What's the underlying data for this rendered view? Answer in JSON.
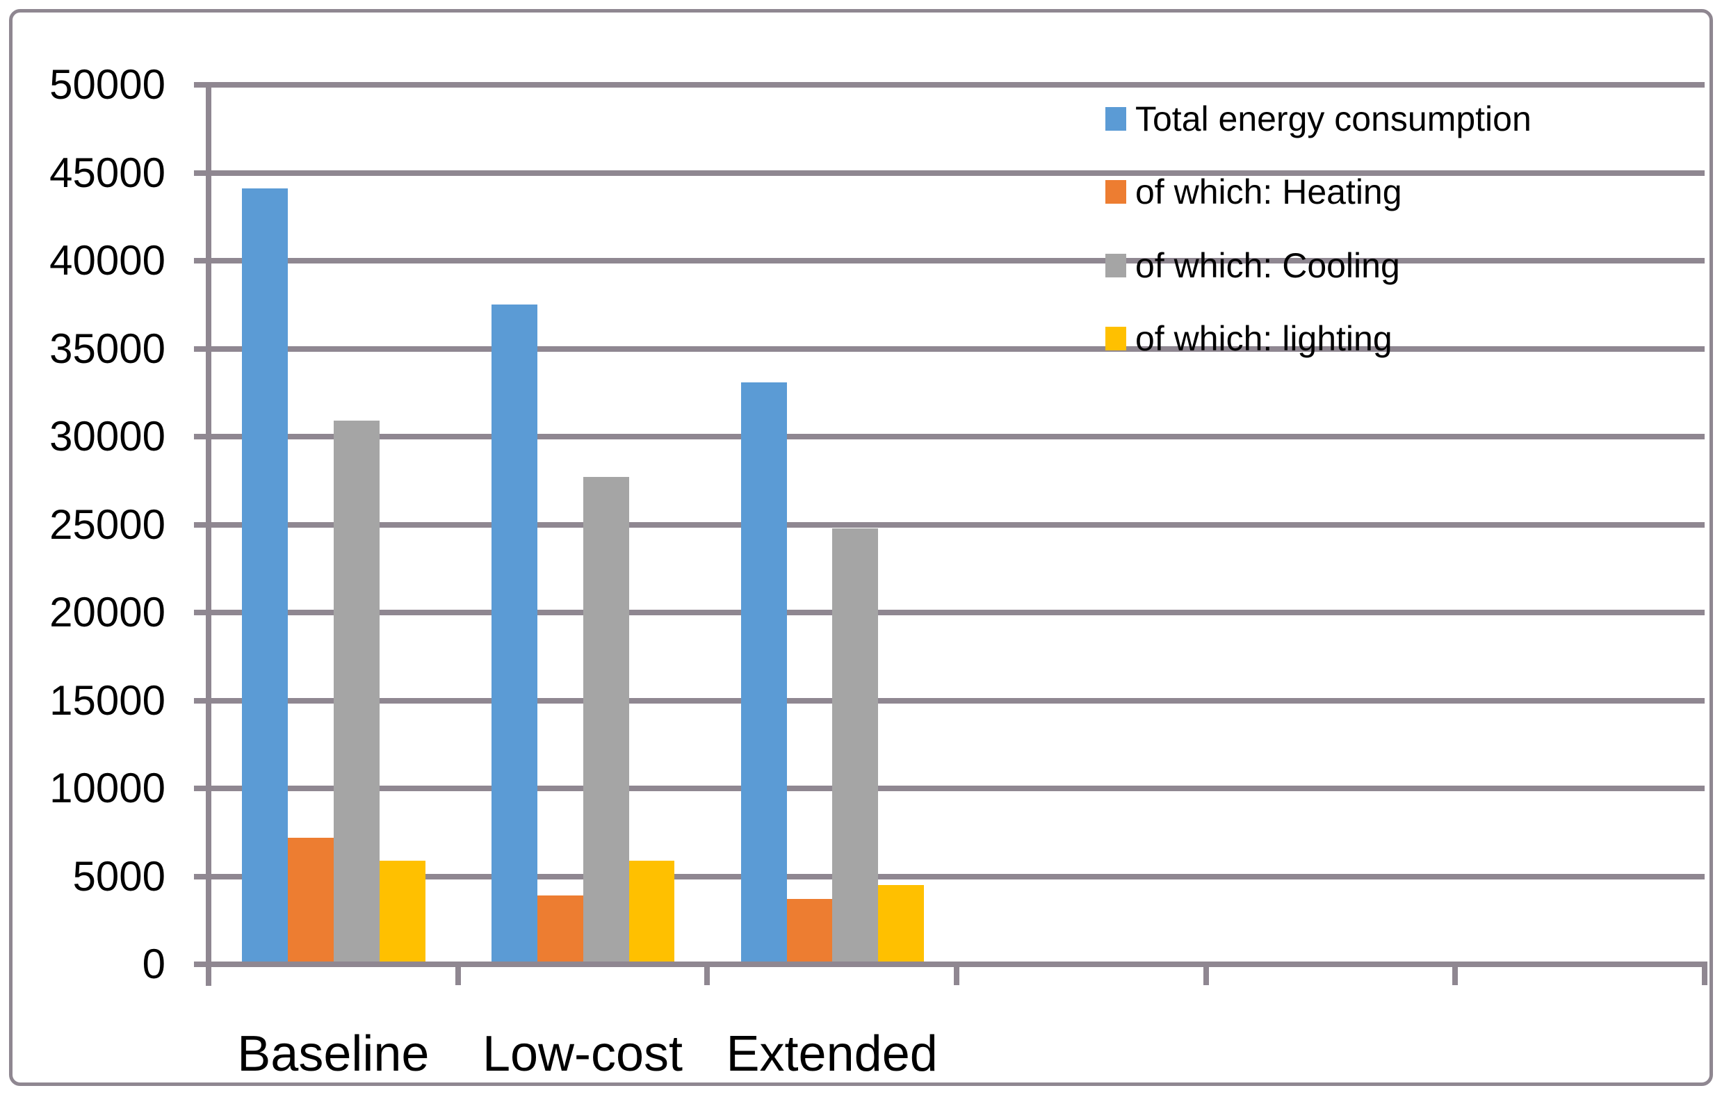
{
  "chart_data": {
    "type": "bar",
    "categories": [
      "Baseline",
      "Low-cost",
      "Extended"
    ],
    "series": [
      {
        "key": "total-energy-consumption",
        "name": "Total energy consumption",
        "color": "#5B9BD5",
        "values": [
          44100,
          37500,
          33100
        ]
      },
      {
        "key": "heating",
        "name": "of which: Heating",
        "color": "#ED7D31",
        "values": [
          7200,
          3900,
          3700
        ]
      },
      {
        "key": "cooling",
        "name": "of which: Cooling",
        "color": "#A5A5A5",
        "values": [
          30900,
          27700,
          24800
        ]
      },
      {
        "key": "lighting",
        "name": "of which: lighting",
        "color": "#FFC000",
        "values": [
          5900,
          5900,
          4500
        ]
      }
    ],
    "title": "",
    "xlabel": "",
    "ylabel": "",
    "ylim": [
      0,
      50000
    ],
    "ytick_step": 5000,
    "ytick_labels": [
      "0",
      "5000",
      "10000",
      "15000",
      "20000",
      "25000",
      "30000",
      "35000",
      "40000",
      "45000",
      "50000"
    ],
    "x_slots": 6,
    "grid": true,
    "legend_position": "inside-top-right",
    "colors": {
      "gridline": "#8f8791",
      "axis": "#8f8791",
      "figure_border": "#8f8791",
      "text": "#000000",
      "background": "#ffffff"
    }
  }
}
